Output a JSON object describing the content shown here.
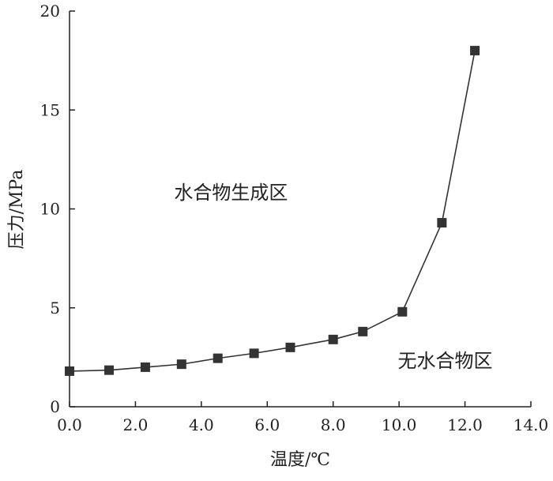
{
  "chart_data": {
    "type": "line",
    "title": "",
    "xlabel": "温度/℃",
    "ylabel": "压力/MPa",
    "xlim": [
      0,
      14
    ],
    "ylim": [
      0,
      20
    ],
    "xticks": [
      "0.0",
      "2.0",
      "4.0",
      "6.0",
      "8.0",
      "10.0",
      "12.0",
      "14.0"
    ],
    "yticks": [
      "0",
      "5",
      "10",
      "15",
      "20"
    ],
    "grid": false,
    "marker": "square",
    "series": [
      {
        "x": [
          0.0,
          1.2,
          2.3,
          3.4,
          4.5,
          5.6,
          6.7,
          8.0,
          8.9,
          10.1,
          11.3,
          12.3
        ],
        "y": [
          1.8,
          1.85,
          2.0,
          2.15,
          2.45,
          2.7,
          3.0,
          3.4,
          3.8,
          4.8,
          9.3,
          18.0
        ]
      }
    ],
    "annotations": [
      {
        "text": "水合物生成区",
        "x": 4.9,
        "y": 10.5
      },
      {
        "text": "无水合物区",
        "x": 11.4,
        "y": 2.0
      }
    ],
    "colors": {
      "line": "#333333",
      "marker": "#333333",
      "axis": "#222222"
    }
  }
}
